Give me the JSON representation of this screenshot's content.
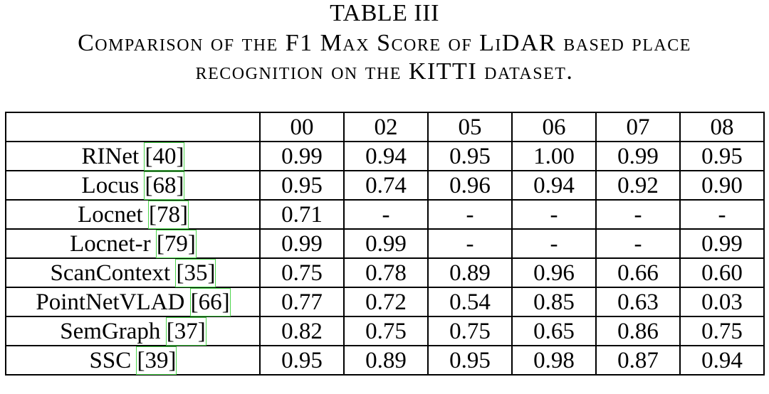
{
  "caption": {
    "label": "TABLE III",
    "line1": "Comparison of the F1 Max Score of LiDAR based place",
    "line2": "recognition on the KITTI dataset."
  },
  "table": {
    "header": [
      "",
      "00",
      "02",
      "05",
      "06",
      "07",
      "08"
    ],
    "rows": [
      {
        "method": "RINet",
        "ref": "40",
        "values": [
          "0.99",
          "0.94",
          "0.95",
          "1.00",
          "0.99",
          "0.95"
        ]
      },
      {
        "method": "Locus",
        "ref": "68",
        "values": [
          "0.95",
          "0.74",
          "0.96",
          "0.94",
          "0.92",
          "0.90"
        ]
      },
      {
        "method": "Locnet",
        "ref": "78",
        "values": [
          "0.71",
          "-",
          "-",
          "-",
          "-",
          "-"
        ]
      },
      {
        "method": "Locnet-r",
        "ref": "79",
        "values": [
          "0.99",
          "0.99",
          "-",
          "-",
          "-",
          "0.99"
        ]
      },
      {
        "method": "ScanContext",
        "ref": "35",
        "values": [
          "0.75",
          "0.78",
          "0.89",
          "0.96",
          "0.66",
          "0.60"
        ]
      },
      {
        "method": "PointNetVLAD",
        "ref": "66",
        "values": [
          "0.77",
          "0.72",
          "0.54",
          "0.85",
          "0.63",
          "0.03"
        ]
      },
      {
        "method": "SemGraph",
        "ref": "37",
        "values": [
          "0.82",
          "0.75",
          "0.75",
          "0.65",
          "0.86",
          "0.75"
        ]
      },
      {
        "method": "SSC",
        "ref": "39",
        "values": [
          "0.95",
          "0.89",
          "0.95",
          "0.98",
          "0.87",
          "0.94"
        ]
      }
    ]
  },
  "colors": {
    "citation_box": "#4cd64c"
  }
}
